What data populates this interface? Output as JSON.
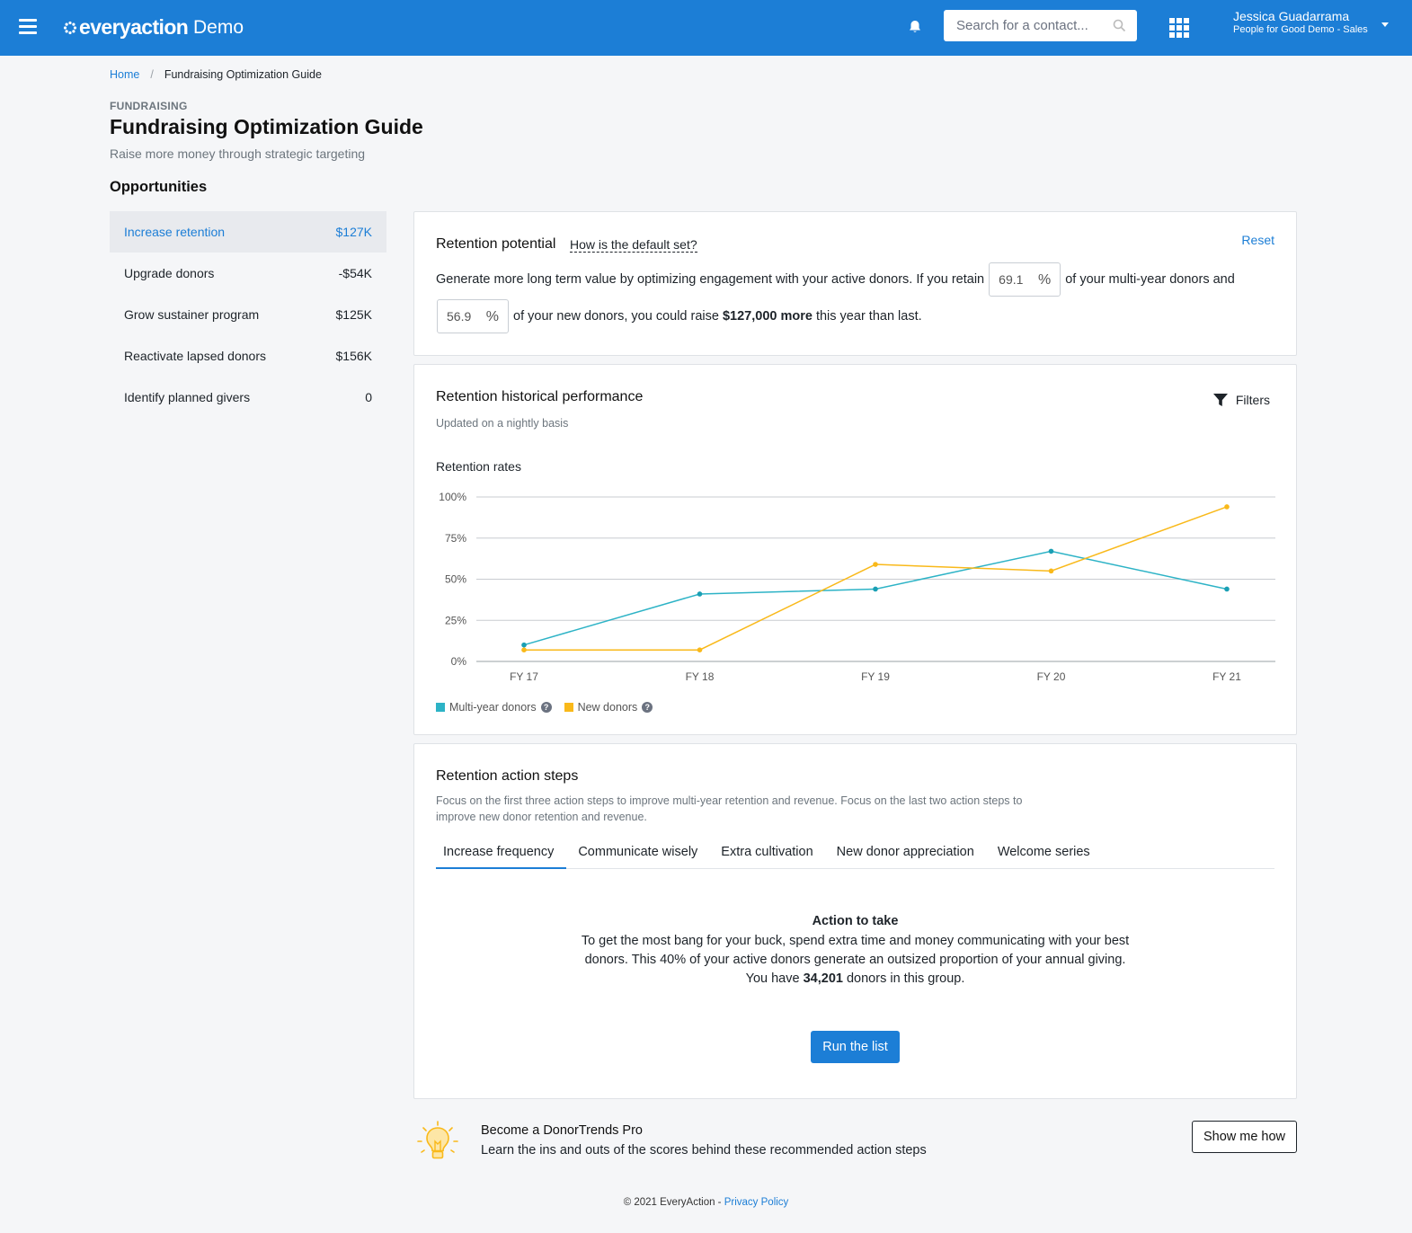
{
  "header": {
    "logo": "everyaction",
    "env": "Demo",
    "search_placeholder": "Search for a contact...",
    "user_name": "Jessica Guadarrama",
    "user_org": "People for Good Demo - Sales"
  },
  "breadcrumb": {
    "home": "Home",
    "separator": "/",
    "current": "Fundraising Optimization Guide"
  },
  "page": {
    "eyebrow": "FUNDRAISING",
    "title": "Fundraising Optimization Guide",
    "subtitle": "Raise more money through strategic targeting",
    "section_title": "Opportunities"
  },
  "opportunities": [
    {
      "label": "Increase retention",
      "value": "$127K",
      "active": true
    },
    {
      "label": "Upgrade donors",
      "value": "-$54K",
      "active": false
    },
    {
      "label": "Grow sustainer program",
      "value": "$125K",
      "active": false
    },
    {
      "label": "Reactivate lapsed donors",
      "value": "$156K",
      "active": false
    },
    {
      "label": "Identify planned givers",
      "value": "0",
      "active": false
    }
  ],
  "retention_potential": {
    "title": "Retention potential",
    "link": "How is the default set?",
    "reset": "Reset",
    "text_1": "Generate more long term value by optimizing engagement with your active donors. If you retain",
    "multi_year_pct": "69.1",
    "pct_sign": "%",
    "text_2": "of your multi-year donors and",
    "new_pct": "56.9",
    "text_3": "of your new donors, you could raise",
    "amount": "$127,000 more",
    "text_4": "this year than last."
  },
  "historical": {
    "title": "Retention historical performance",
    "subtitle": "Updated on a nightly basis",
    "filters": "Filters",
    "chart_title": "Retention rates"
  },
  "chart_data": {
    "type": "line",
    "title": "Retention rates",
    "categories": [
      "FY 17",
      "FY 18",
      "FY 19",
      "FY 20",
      "FY 21"
    ],
    "y_ticks": [
      "0%",
      "25%",
      "50%",
      "75%",
      "100%"
    ],
    "ylim": [
      0,
      100
    ],
    "grid": true,
    "legend_position": "bottom-left",
    "series": [
      {
        "name": "Multi-year donors",
        "color": "#2db3c6",
        "values": [
          10,
          41,
          44,
          67,
          44
        ]
      },
      {
        "name": "New donors",
        "color": "#f9b91a",
        "values": [
          7,
          7,
          59,
          55,
          94
        ]
      }
    ]
  },
  "action_steps": {
    "title": "Retention action steps",
    "description": "Focus on the first three action steps to improve multi-year retention and revenue. Focus on the last two action steps to improve new donor retention and revenue.",
    "tabs": [
      "Increase frequency",
      "Communicate wisely",
      "Extra cultivation",
      "New donor appreciation",
      "Welcome series"
    ],
    "action_heading": "Action to take",
    "action_text": "To get the most bang for your buck, spend extra time and money communicating with your best donors. This 40% of your active donors generate an outsized proportion of your annual giving.",
    "count_prefix": "You have",
    "count": "34,201",
    "count_suffix": "donors in this group.",
    "run_button": "Run the list"
  },
  "pro": {
    "title": "Become a DonorTrends Pro",
    "text": "Learn the ins and outs of the scores behind these recommended action steps",
    "button": "Show me how"
  },
  "footer": {
    "copyright": "© 2021 EveryAction -",
    "privacy": "Privacy Policy"
  },
  "colors": {
    "brand_blue": "#1c7ed6",
    "teal": "#2db3c6",
    "amber": "#f9b91a"
  }
}
